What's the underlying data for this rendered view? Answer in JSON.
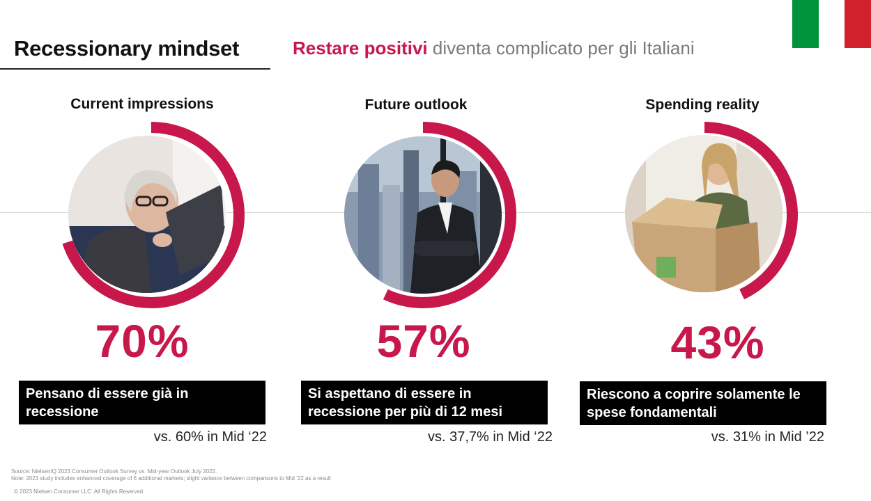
{
  "header": {
    "title": "Recessionary mindset",
    "subtitle_highlight": "Restare positivi",
    "subtitle_rest": " diventa complicato per gli Italiani"
  },
  "flag": {
    "colors": [
      "#00933b",
      "#ffffff",
      "#d0212c"
    ]
  },
  "accent_color": "#c8174b",
  "stats": [
    {
      "heading": "Current impressions",
      "percent": "70%",
      "fraction": 0.7,
      "photo_icon": "woman-reading-tablet",
      "description": "Pensano di essere già in recessione",
      "comparison": "vs. 60% in Mid ‘22"
    },
    {
      "heading": "Future outlook",
      "percent": "57%",
      "fraction": 0.57,
      "photo_icon": "man-looking-at-city",
      "description": "Si aspettano di essere in recessione per più di 12 mesi",
      "comparison": "vs. 37,7% in Mid ‘22"
    },
    {
      "heading": "Spending reality",
      "percent": "43%",
      "fraction": 0.43,
      "photo_icon": "woman-opening-box",
      "description": "Riescono a coprire solamente le spese fondamentali",
      "comparison": "vs. 31% in Mid ’22"
    }
  ],
  "footer": {
    "source": "Source: NielsenIQ 2023 Consumer Outlook Survey vs. Mid-year Outlook July 2022.",
    "note": "Note: 2023 study includes enhanced coverage of 6 additional markets; slight variance between comparisons to Mid ’22 as a result",
    "copyright": "© 2023 Nielsen Consumer LLC. All Rights Reserved."
  }
}
